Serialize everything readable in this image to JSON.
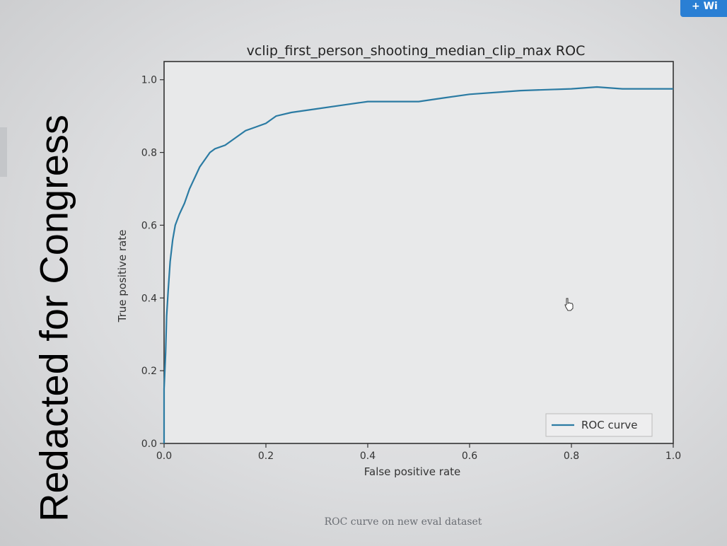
{
  "toolbar": {
    "button_label": "+ Wi"
  },
  "redaction_label": "Redacted for Congress",
  "caption": "ROC curve on new eval dataset",
  "colors": {
    "curve": "#2b7ba3",
    "axes": "#333333",
    "plot_bg": "#e8e9ea"
  },
  "chart_data": {
    "type": "line",
    "title": "vclip_first_person_shooting_median_clip_max ROC",
    "xlabel": "False positive rate",
    "ylabel": "True positive rate",
    "xlim": [
      0.0,
      1.0
    ],
    "ylim": [
      0.0,
      1.05
    ],
    "xticks": [
      "0.0",
      "0.2",
      "0.4",
      "0.6",
      "0.8",
      "1.0"
    ],
    "yticks": [
      "0.0",
      "0.2",
      "0.4",
      "0.6",
      "0.8",
      "1.0"
    ],
    "grid": false,
    "legend_position": "lower-right",
    "series": [
      {
        "name": "ROC curve",
        "x": [
          0.0,
          0.0,
          0.003,
          0.005,
          0.008,
          0.012,
          0.017,
          0.022,
          0.03,
          0.04,
          0.05,
          0.06,
          0.07,
          0.08,
          0.09,
          0.1,
          0.12,
          0.14,
          0.16,
          0.18,
          0.2,
          0.22,
          0.25,
          0.3,
          0.35,
          0.4,
          0.5,
          0.55,
          0.6,
          0.7,
          0.8,
          0.85,
          0.9,
          1.0
        ],
        "y": [
          0.0,
          0.15,
          0.25,
          0.35,
          0.42,
          0.5,
          0.56,
          0.6,
          0.63,
          0.66,
          0.7,
          0.73,
          0.76,
          0.78,
          0.8,
          0.81,
          0.82,
          0.84,
          0.86,
          0.87,
          0.88,
          0.9,
          0.91,
          0.92,
          0.93,
          0.94,
          0.94,
          0.95,
          0.96,
          0.97,
          0.975,
          0.98,
          0.975,
          0.975
        ]
      }
    ]
  }
}
